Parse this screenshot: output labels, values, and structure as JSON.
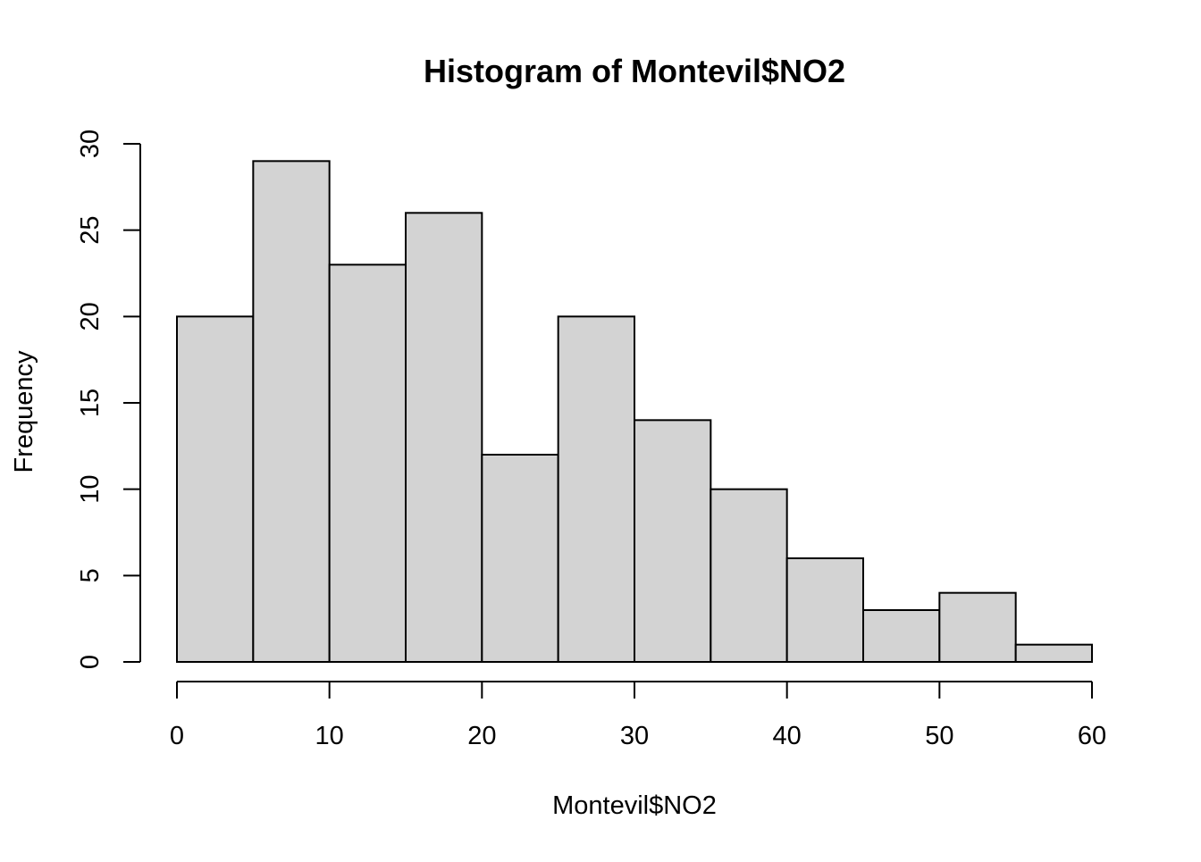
{
  "chart_data": {
    "type": "bar",
    "title": "Histogram of Montevil$NO2",
    "xlabel": "Montevil$NO2",
    "ylabel": "Frequency",
    "bins": [
      {
        "x0": 0,
        "x1": 5,
        "count": 20
      },
      {
        "x0": 5,
        "x1": 10,
        "count": 29
      },
      {
        "x0": 10,
        "x1": 15,
        "count": 23
      },
      {
        "x0": 15,
        "x1": 20,
        "count": 26
      },
      {
        "x0": 20,
        "x1": 25,
        "count": 12
      },
      {
        "x0": 25,
        "x1": 30,
        "count": 20
      },
      {
        "x0": 30,
        "x1": 35,
        "count": 14
      },
      {
        "x0": 35,
        "x1": 40,
        "count": 10
      },
      {
        "x0": 40,
        "x1": 45,
        "count": 6
      },
      {
        "x0": 45,
        "x1": 50,
        "count": 3
      },
      {
        "x0": 50,
        "x1": 55,
        "count": 4
      },
      {
        "x0": 55,
        "x1": 60,
        "count": 1
      }
    ],
    "xlim": [
      0,
      60
    ],
    "ylim": [
      0,
      30
    ],
    "x_ticks": [
      "0",
      "10",
      "20",
      "30",
      "40",
      "50",
      "60"
    ],
    "y_ticks": [
      "0",
      "5",
      "10",
      "15",
      "20",
      "25",
      "30"
    ],
    "grid": false,
    "legend": "none",
    "bar_fill": "#d3d3d3",
    "bar_stroke": "#000000"
  }
}
